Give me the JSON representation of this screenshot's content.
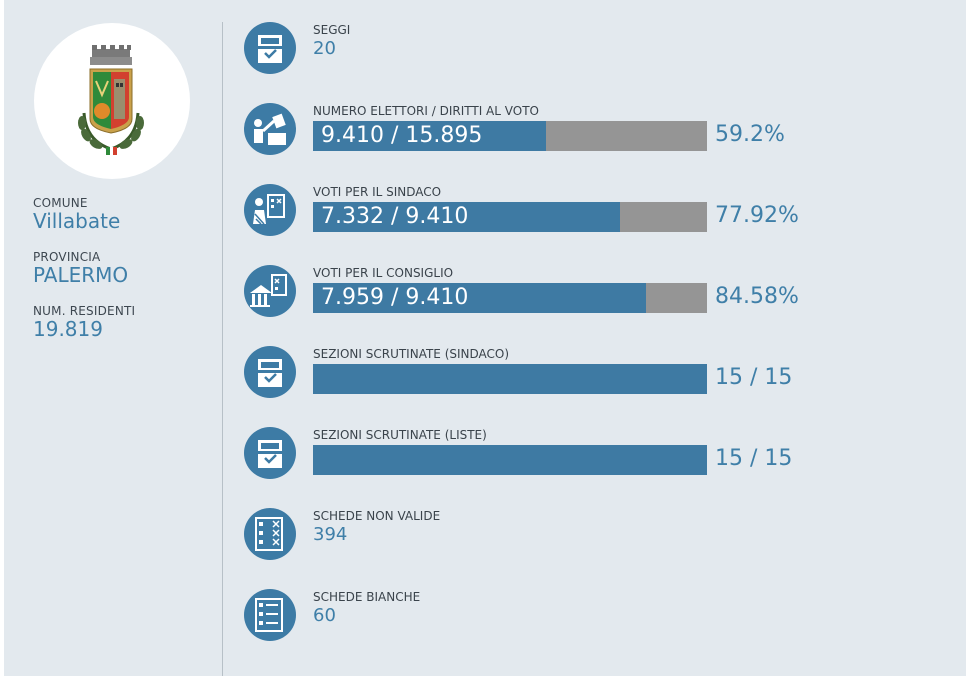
{
  "comune": {
    "crest": "comune-crest-emblem",
    "labels": {
      "comune": "COMUNE",
      "provincia": "PROVINCIA",
      "residenti": "NUM. RESIDENTI"
    },
    "values": {
      "comune": "Villabate",
      "provincia": "PALERMO",
      "residenti": "19.819"
    }
  },
  "colors": {
    "panel_bg": "#e3e9ee",
    "accent": "#3f7fa8",
    "bar_fill": "#3e7aa3",
    "bar_track": "#959595"
  },
  "stats": [
    {
      "label": "SEGGI",
      "value": "20",
      "icon": "ballot-box-icon"
    },
    {
      "label": "NUMERO ELETTORI / DIRITTI AL VOTO",
      "bar_text": "9.410 / 15.895",
      "percent_text": "59.2%",
      "fill_fraction": 0.592,
      "icon": "voter-casting-ballot-icon"
    },
    {
      "label": "VOTI PER IL SINDACO",
      "bar_text": "7.332 / 9.410",
      "percent_text": "77.92%",
      "fill_fraction": 0.7792,
      "icon": "mayor-vote-icon"
    },
    {
      "label": "VOTI PER IL CONSIGLIO",
      "bar_text": "7.959 / 9.410",
      "percent_text": "84.58%",
      "fill_fraction": 0.8458,
      "icon": "council-vote-icon"
    },
    {
      "label": "SEZIONI SCRUTINATE (SINDACO)",
      "percent_text": "15 / 15",
      "fill_fraction": 1.0,
      "icon": "ballot-box-icon"
    },
    {
      "label": "SEZIONI SCRUTINATE (LISTE)",
      "percent_text": "15 / 15",
      "fill_fraction": 1.0,
      "icon": "ballot-box-icon"
    },
    {
      "label": "SCHEDE NON VALIDE",
      "value": "394",
      "icon": "invalid-ballot-icon"
    },
    {
      "label": "SCHEDE BIANCHE",
      "value": "60",
      "icon": "blank-ballot-icon"
    }
  ]
}
